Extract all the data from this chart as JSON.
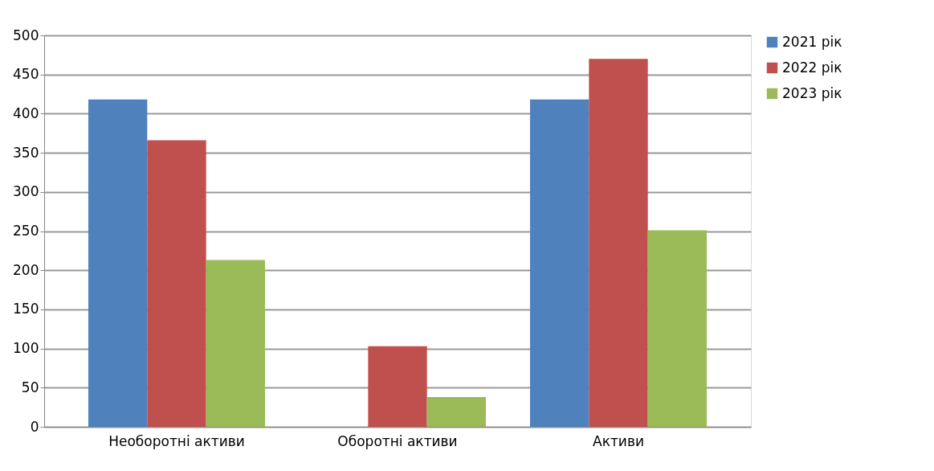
{
  "chart_data": {
    "type": "bar",
    "categories": [
      "Необоротні активи",
      "Оборотні активи",
      "Активи"
    ],
    "series": [
      {
        "name": "2021 рік",
        "color": "#4f81bd",
        "values": [
          418,
          0,
          418
        ]
      },
      {
        "name": "2022 рік",
        "color": "#c0504d",
        "values": [
          366,
          103,
          470
        ]
      },
      {
        "name": "2023 рік",
        "color": "#9bbb59",
        "values": [
          213,
          38,
          251
        ]
      }
    ],
    "ylim": [
      0,
      500
    ],
    "yticks": [
      0,
      50,
      100,
      150,
      200,
      250,
      300,
      350,
      400,
      450,
      500
    ],
    "grid": "y",
    "legend": "right"
  }
}
